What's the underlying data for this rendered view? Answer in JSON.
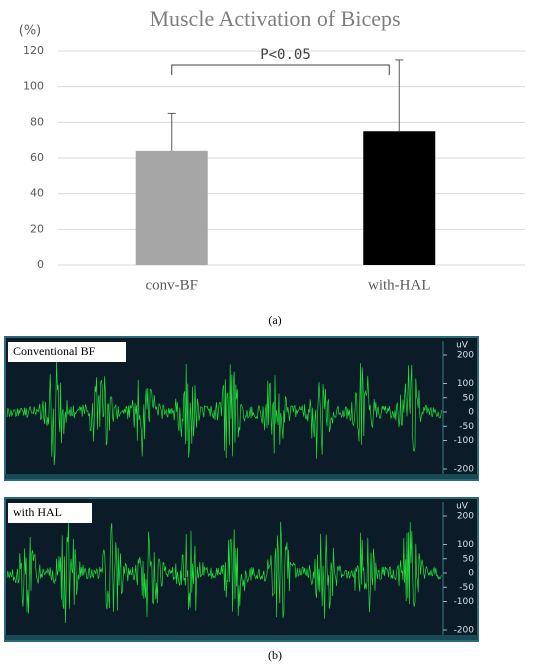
{
  "chart_data": [
    {
      "type": "bar",
      "title": "Muscle Activation of Biceps",
      "y_unit": "(%)",
      "categories": [
        "conv-BF",
        "with-HAL"
      ],
      "values": [
        64,
        75
      ],
      "errors": [
        21,
        40
      ],
      "colors": [
        "#a6a6a6",
        "#000000"
      ],
      "ylim": [
        0,
        120
      ],
      "yticks": [
        0,
        20,
        40,
        60,
        80,
        100,
        120
      ],
      "grid": true,
      "annotation": "P<0.05",
      "panel_label": "(a)"
    },
    {
      "type": "emg",
      "title": "Conventional BF",
      "y_unit": "uV",
      "ylim": [
        -200,
        200
      ],
      "yticks": [
        200,
        100,
        50,
        0,
        -50,
        -100,
        -200
      ]
    },
    {
      "type": "emg",
      "title": "with HAL",
      "y_unit": "uV",
      "ylim": [
        -200,
        200
      ],
      "yticks": [
        200,
        100,
        50,
        0,
        -50,
        -100,
        -200
      ],
      "panel_label": "(b)"
    }
  ]
}
